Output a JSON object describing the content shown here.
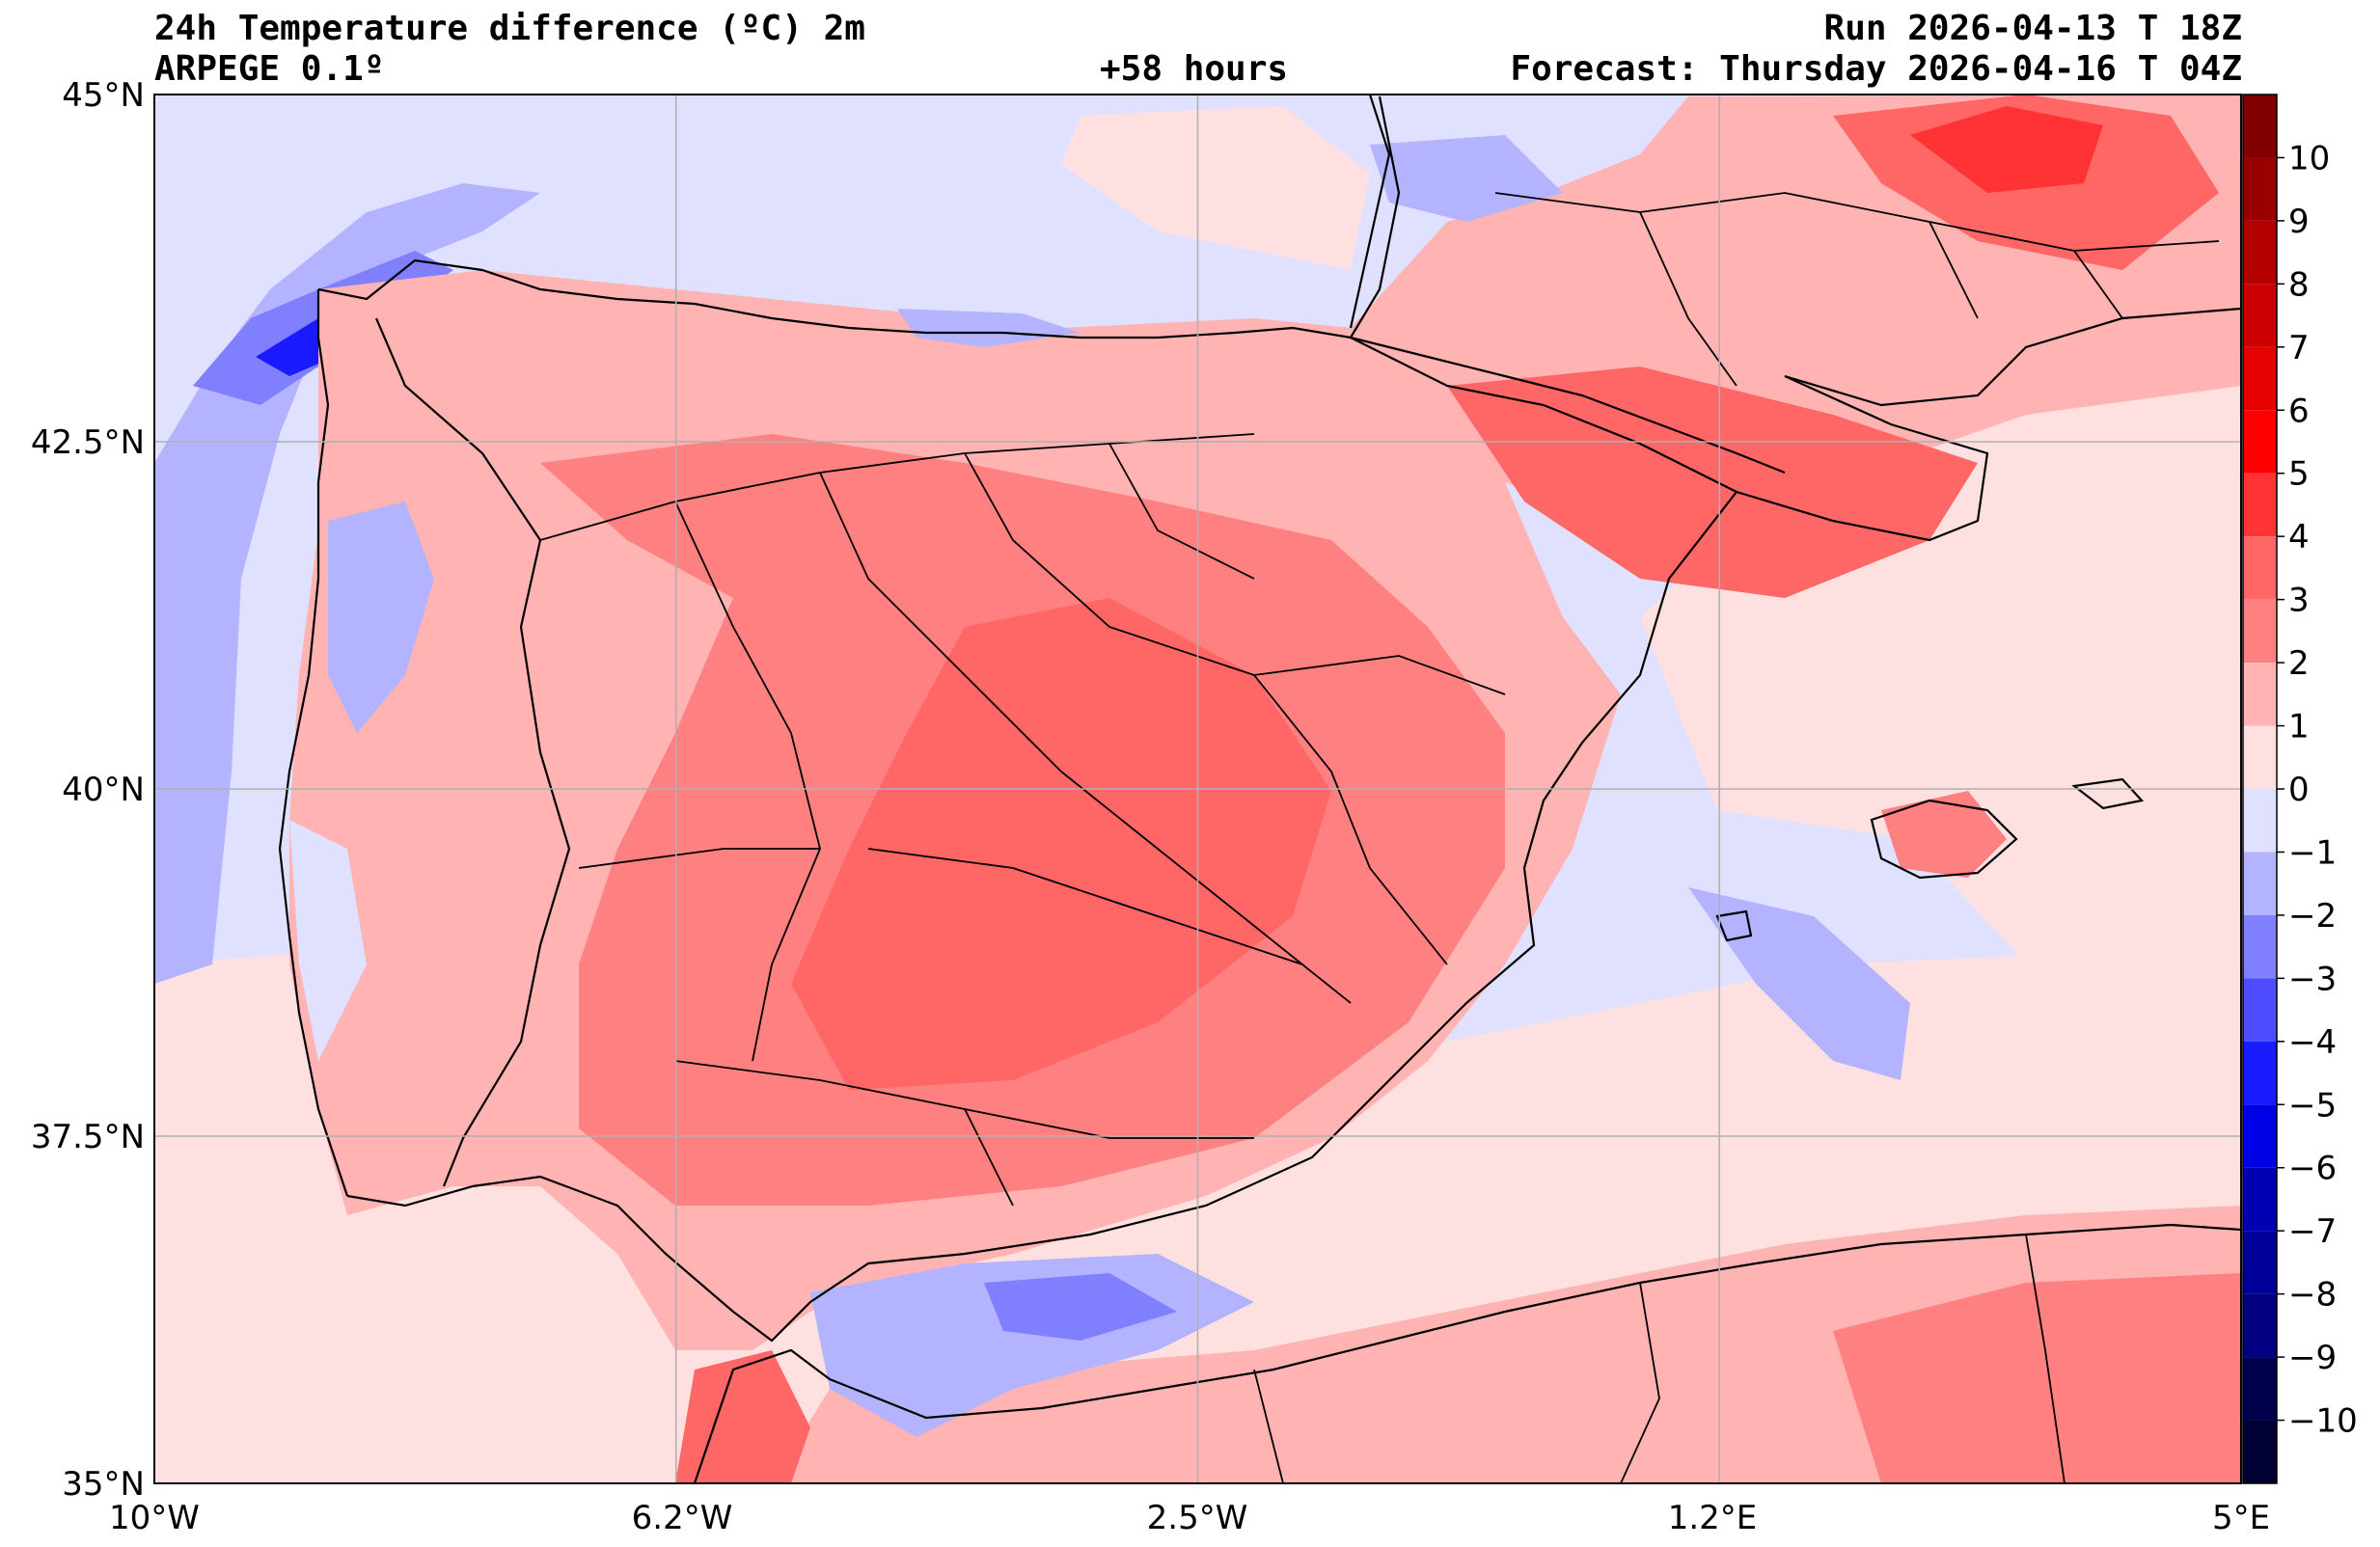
{
  "header": {
    "title": "24h Temperature difference (ºC) 2m",
    "model": "ARPEGE 0.1º",
    "lead": "+58 hours",
    "run": "Run 2026-04-13 T 18Z",
    "forecast": "Forecast: Thursday 2026-04-16 T 04Z"
  },
  "axes": {
    "lat_labels": [
      "45°N",
      "42.5°N",
      "40°N",
      "37.5°N",
      "35°N"
    ],
    "lon_labels": [
      "10°W",
      "6.2°W",
      "2.5°W",
      "1.2°E",
      "5°E"
    ],
    "lat_range": [
      35,
      45
    ],
    "lon_range": [
      -10,
      5
    ],
    "grid": true
  },
  "colorbar": {
    "ticks": [
      "10",
      "9",
      "8",
      "7",
      "6",
      "5",
      "4",
      "3",
      "2",
      "1",
      "0",
      "−1",
      "−2",
      "−3",
      "−4",
      "−5",
      "−6",
      "−7",
      "−8",
      "−9",
      "−10"
    ],
    "range": [
      -11,
      11
    ],
    "levels": [
      {
        "from": 10,
        "to": 11,
        "color": "#800000"
      },
      {
        "from": 9,
        "to": 10,
        "color": "#990000"
      },
      {
        "from": 8,
        "to": 9,
        "color": "#b30000"
      },
      {
        "from": 7,
        "to": 8,
        "color": "#cc0000"
      },
      {
        "from": 6,
        "to": 7,
        "color": "#e60000"
      },
      {
        "from": 5,
        "to": 6,
        "color": "#ff0000"
      },
      {
        "from": 4,
        "to": 5,
        "color": "#ff3333"
      },
      {
        "from": 3,
        "to": 4,
        "color": "#ff6666"
      },
      {
        "from": 2,
        "to": 3,
        "color": "#ff8080"
      },
      {
        "from": 1,
        "to": 2,
        "color": "#ffb3b3"
      },
      {
        "from": 0,
        "to": 1,
        "color": "#ffe0e0"
      },
      {
        "from": -1,
        "to": 0,
        "color": "#e0e0ff"
      },
      {
        "from": -2,
        "to": -1,
        "color": "#b3b3ff"
      },
      {
        "from": -3,
        "to": -2,
        "color": "#8080ff"
      },
      {
        "from": -4,
        "to": -3,
        "color": "#4d4dff"
      },
      {
        "from": -5,
        "to": -4,
        "color": "#1a1aff"
      },
      {
        "from": -6,
        "to": -5,
        "color": "#0000e6"
      },
      {
        "from": -7,
        "to": -6,
        "color": "#0000b3"
      },
      {
        "from": -8,
        "to": -7,
        "color": "#000099"
      },
      {
        "from": -9,
        "to": -8,
        "color": "#000080"
      },
      {
        "from": -10,
        "to": -9,
        "color": "#00004d"
      },
      {
        "from": -11,
        "to": -10,
        "color": "#000033"
      }
    ]
  }
}
